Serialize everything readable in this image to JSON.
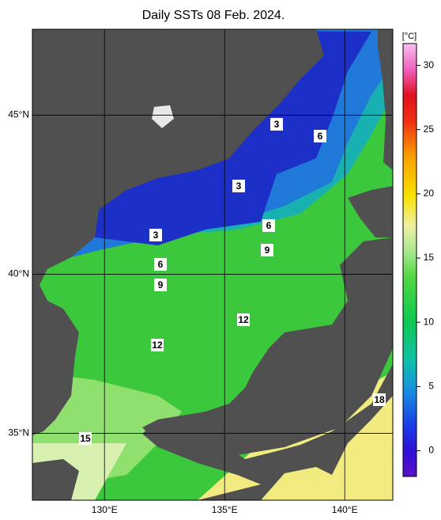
{
  "title": "Daily SSTs 08 Feb. 2024.",
  "map": {
    "lonlim": [
      127,
      142
    ],
    "lonticks": [
      {
        "value": 130,
        "label": "130°E"
      },
      {
        "value": 135,
        "label": "135°E"
      },
      {
        "value": 140,
        "label": "140°E"
      }
    ],
    "latlim": [
      32.9,
      47.7
    ],
    "latticks": [
      {
        "value": 35,
        "label": "35°N"
      },
      {
        "value": 40,
        "label": "40°N"
      },
      {
        "value": 45,
        "label": "45°N"
      }
    ],
    "grid": true
  },
  "colorbar": {
    "unit": "[°C]",
    "lim": [
      -2,
      31.7
    ],
    "ticks": [
      0,
      5,
      10,
      15,
      20,
      25,
      30
    ]
  },
  "contour_labels": [
    3,
    6,
    3,
    3,
    6,
    9,
    6,
    9,
    12,
    12,
    18,
    15
  ]
}
